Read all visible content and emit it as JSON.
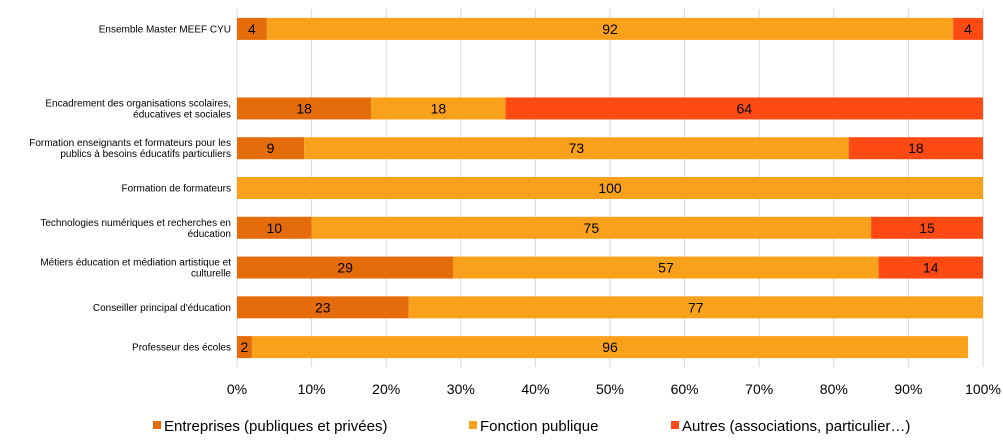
{
  "chart_data": {
    "type": "bar",
    "orientation": "horizontal",
    "stacked": true,
    "title": "",
    "xlabel": "",
    "ylabel": "",
    "xlim": [
      0,
      100
    ],
    "x_ticks": [
      "0%",
      "10%",
      "20%",
      "30%",
      "40%",
      "50%",
      "60%",
      "70%",
      "80%",
      "90%",
      "100%"
    ],
    "grid": true,
    "legend_position": "bottom",
    "categories": [
      [
        "Ensemble Master MEEF CYU"
      ],
      [],
      [
        "Encadrement des organisations scolaires,",
        "éducatives et sociales"
      ],
      [
        "Formation enseignants et formateurs pour les",
        "publics à besoins éducatifs particuliers"
      ],
      [
        "Formation de formateurs"
      ],
      [
        "Technologies numériques et recherches en",
        "éducation"
      ],
      [
        "Métiers éducation et médiation artistique et",
        "culturelle"
      ],
      [
        "Conseiller principal d'éducation"
      ],
      [
        "Professeur des écoles"
      ]
    ],
    "series": [
      {
        "name": "Entreprises (publiques et privées)",
        "color": "#E46C0A",
        "values": [
          4,
          null,
          18,
          9,
          0,
          10,
          29,
          23,
          2
        ]
      },
      {
        "name": "Fonction publique",
        "color": "#F9A11B",
        "values": [
          92,
          null,
          18,
          73,
          100,
          75,
          57,
          77,
          96
        ]
      },
      {
        "name": "Autres (associations, particulier…)",
        "color": "#FF4A14",
        "values": [
          4,
          null,
          64,
          18,
          0,
          15,
          14,
          0,
          0
        ]
      }
    ]
  }
}
